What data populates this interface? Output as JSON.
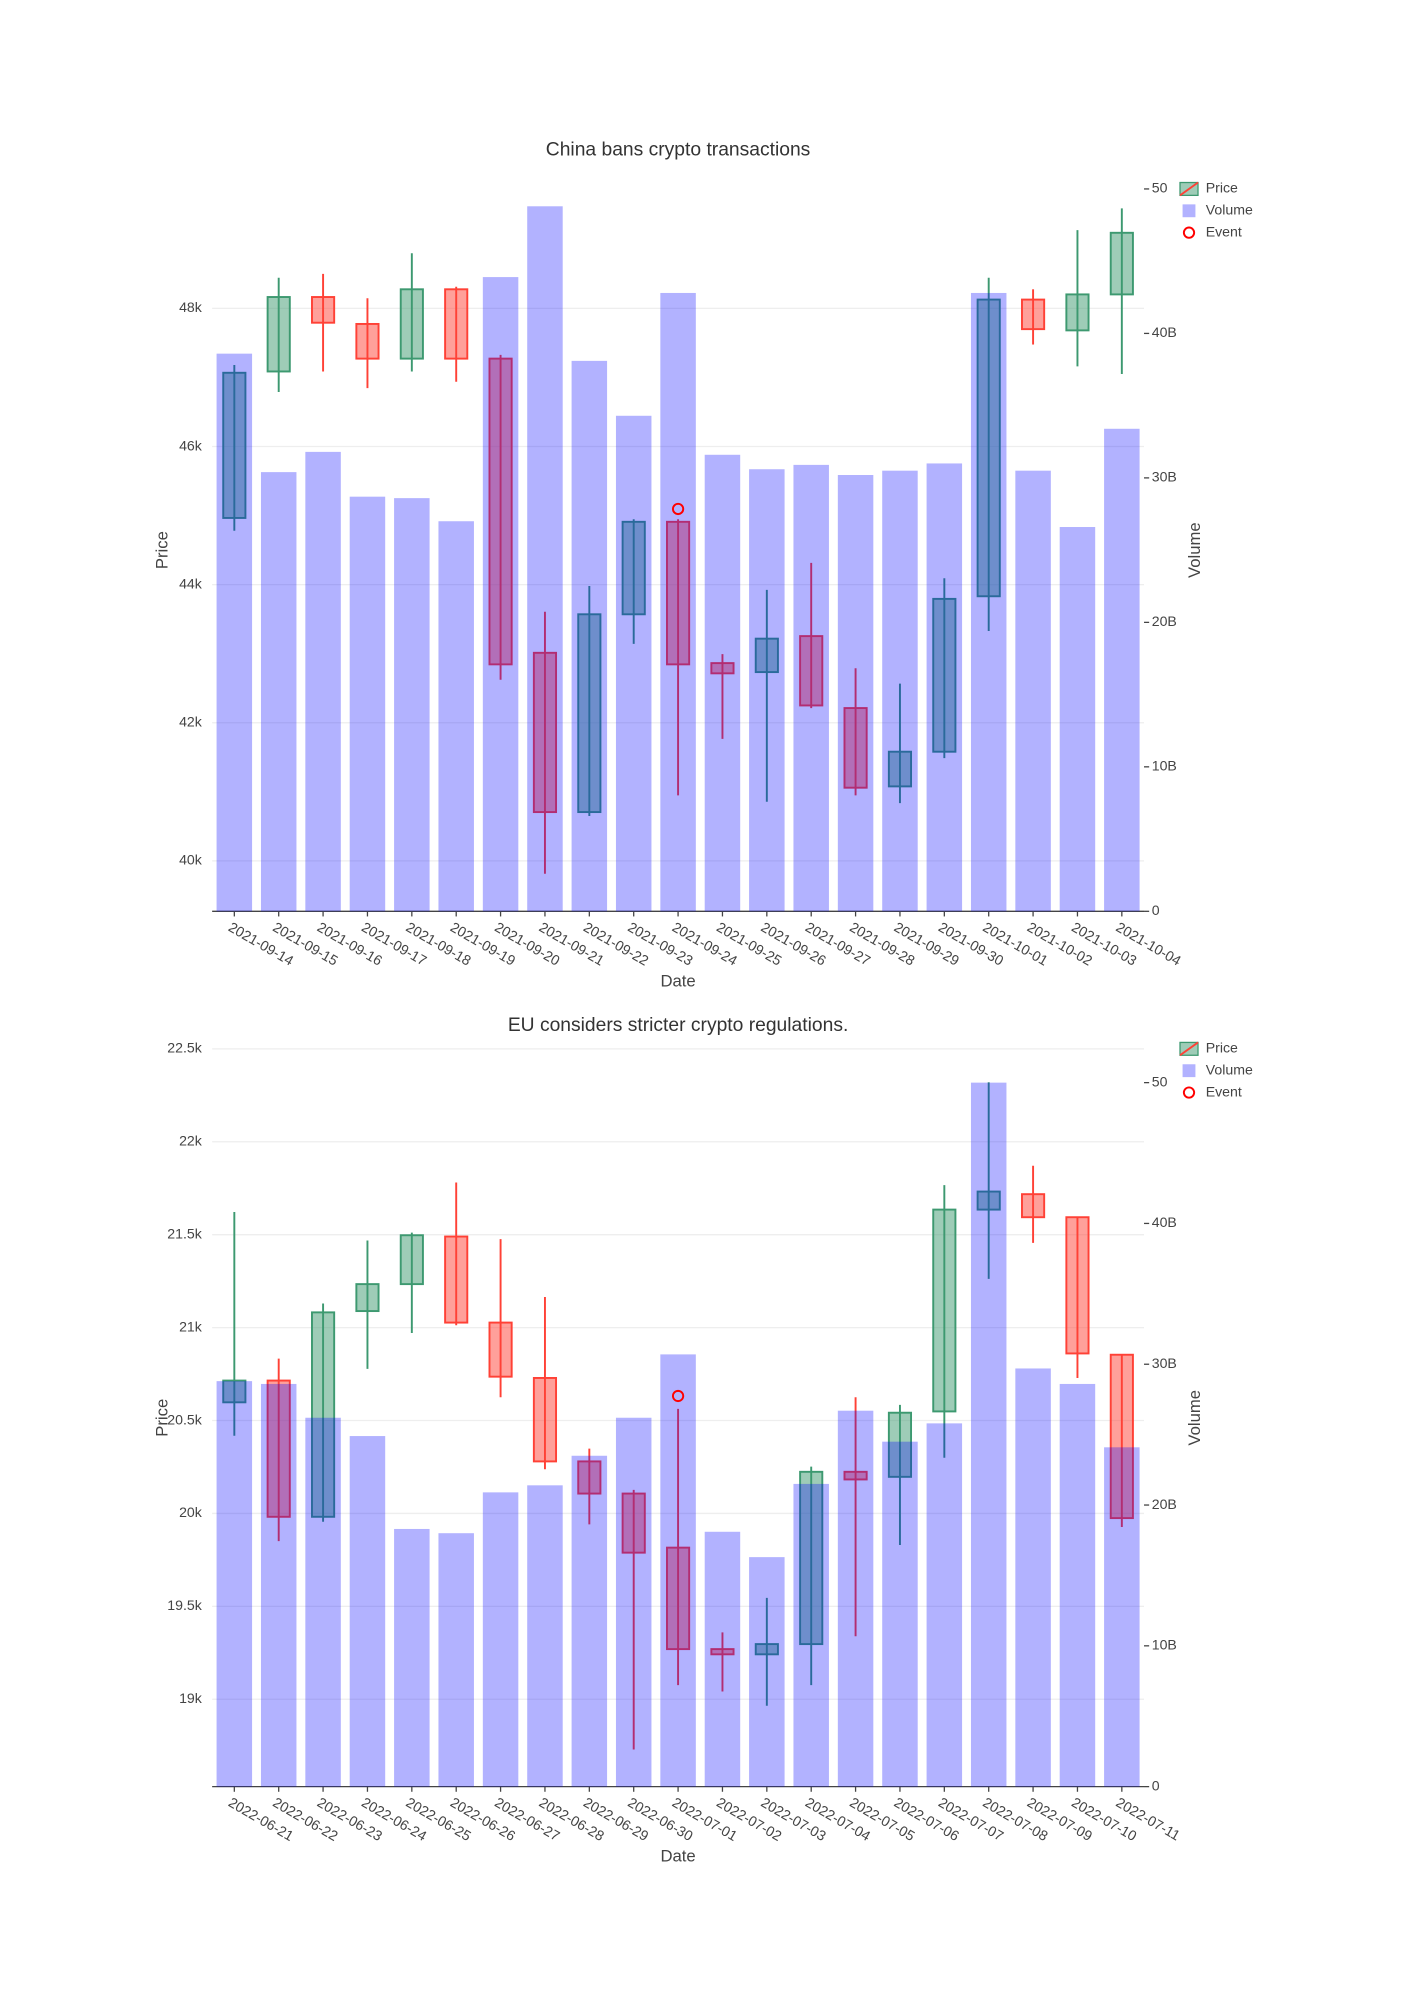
{
  "chart_data": [
    {
      "type": "candlestick",
      "title": "China bans crypto transactions",
      "xlabel": "Date",
      "ylabel": "Price",
      "y2label": "Volume",
      "categories": [
        "2021-09-14",
        "2021-09-15",
        "2021-09-16",
        "2021-09-17",
        "2021-09-18",
        "2021-09-19",
        "2021-09-20",
        "2021-09-21",
        "2021-09-22",
        "2021-09-23",
        "2021-09-24",
        "2021-09-25",
        "2021-09-26",
        "2021-09-27",
        "2021-09-28",
        "2021-09-29",
        "2021-09-30",
        "2021-10-01",
        "2021-10-02",
        "2021-10-03",
        "2021-10-04"
      ],
      "ylim": [
        39270,
        49730
      ],
      "yticks": [
        {
          "value": 40000,
          "label": "40k"
        },
        {
          "value": 42000,
          "label": "42k"
        },
        {
          "value": 44000,
          "label": "44k"
        },
        {
          "value": 46000,
          "label": "46k"
        },
        {
          "value": 48000,
          "label": "48k"
        }
      ],
      "y2lim": [
        0,
        50000000000
      ],
      "y2ticks": [
        0,
        {
          "value": 10000000000,
          "label": "10B"
        },
        {
          "value": 20000000000,
          "label": "20B"
        },
        {
          "value": 30000000000,
          "label": "30B"
        },
        {
          "value": 40000000000,
          "label": "40B"
        },
        {
          "value": 50000000000,
          "label": "50"
        }
      ],
      "grid": true,
      "series": [
        {
          "name": "Price",
          "type": "candlestick",
          "increasing_color": "#3d9970",
          "decreasing_color": "#ff4136",
          "open": [
            44966,
            47087,
            48165,
            47775,
            47273,
            48277,
            47273,
            43013,
            40707,
            43571,
            44910,
            42864,
            42734,
            43255,
            42213,
            41079,
            41581,
            43832,
            48128,
            47682,
            48203
          ],
          "high": [
            47180,
            48444,
            48500,
            48147,
            48798,
            48314,
            47328,
            43608,
            43980,
            44948,
            44948,
            42995,
            43925,
            44315,
            42790,
            42567,
            44092,
            48444,
            48277,
            49133,
            49449
          ],
          "low": [
            44780,
            46789,
            47087,
            46845,
            47087,
            46938,
            42623,
            39814,
            40651,
            43143,
            40949,
            41767,
            40856,
            42213,
            40949,
            40837,
            41488,
            43329,
            47477,
            47161,
            47050
          ],
          "close": [
            47068,
            48165,
            47793,
            47273,
            48277,
            47273,
            42846,
            40707,
            43571,
            44910,
            42846,
            42716,
            43218,
            42251,
            41060,
            41581,
            43794,
            48128,
            47700,
            48203,
            49095
          ]
        },
        {
          "name": "Volume",
          "type": "bar",
          "axis": "y2",
          "color": "#0000ff",
          "opacity": 0.3,
          "values": [
            38600000000,
            30400000000,
            31800000000,
            28700000000,
            28600000000,
            27000000000,
            43900000000,
            48800000000,
            38100000000,
            34300000000,
            42800000000,
            31600000000,
            30600000000,
            30900000000,
            30200000000,
            30500000000,
            31000000000,
            42800000000,
            30500000000,
            26600000000,
            33400000000
          ]
        },
        {
          "name": "Event",
          "type": "scatter",
          "color": "#ff0000",
          "x": [
            "2021-09-24"
          ],
          "values": [
            45096
          ]
        }
      ]
    },
    {
      "type": "candlestick",
      "title": "EU considers stricter crypto regulations.",
      "xlabel": "Date",
      "ylabel": "Price",
      "y2label": "Volume",
      "categories": [
        "2022-06-21",
        "2022-06-22",
        "2022-06-23",
        "2022-06-24",
        "2022-06-25",
        "2022-06-26",
        "2022-06-27",
        "2022-06-28",
        "2022-06-29",
        "2022-06-30",
        "2022-07-01",
        "2022-07-02",
        "2022-07-03",
        "2022-07-04",
        "2022-07-05",
        "2022-07-06",
        "2022-07-07",
        "2022-07-08",
        "2022-07-09",
        "2022-07-10",
        "2022-07-11"
      ],
      "ylim": [
        18530,
        22500
      ],
      "yticks": [
        {
          "value": 19000,
          "label": "19k"
        },
        {
          "value": 19500,
          "label": "19.5k"
        },
        {
          "value": 20000,
          "label": "20k"
        },
        {
          "value": 20500,
          "label": "20.5k"
        },
        {
          "value": 21000,
          "label": "21k"
        },
        {
          "value": 21500,
          "label": "21.5k"
        },
        {
          "value": 22000,
          "label": "22k"
        },
        {
          "value": 22500,
          "label": "22.5k"
        }
      ],
      "y2lim": [
        0,
        52400000000
      ],
      "y2ticks": [
        0,
        {
          "value": 10000000000,
          "label": "10B"
        },
        {
          "value": 20000000000,
          "label": "20B"
        },
        {
          "value": 30000000000,
          "label": "30B"
        },
        {
          "value": 40000000000,
          "label": "40B"
        },
        {
          "value": 50000000000,
          "label": "50"
        }
      ],
      "grid": true,
      "series": [
        {
          "name": "Price",
          "type": "candlestick",
          "increasing_color": "#3d9970",
          "decreasing_color": "#ff4136",
          "open": [
            20598,
            20715,
            19982,
            21089,
            21234,
            21490,
            21027,
            20729,
            20280,
            20107,
            19816,
            19270,
            19242,
            19297,
            20224,
            20197,
            20549,
            21635,
            21718,
            21594,
            20854
          ],
          "high": [
            21622,
            20833,
            21130,
            21469,
            21511,
            21781,
            21476,
            21165,
            20349,
            20127,
            20563,
            19360,
            19546,
            20252,
            20625,
            20584,
            21767,
            22320,
            21871,
            21594,
            20854
          ],
          "low": [
            20418,
            19851,
            19955,
            20778,
            20971,
            21013,
            20625,
            20238,
            19941,
            18730,
            19076,
            19042,
            18965,
            19076,
            19339,
            19830,
            20300,
            21262,
            21456,
            20729,
            19927
          ],
          "close": [
            20715,
            19982,
            21082,
            21234,
            21497,
            21027,
            20736,
            20280,
            20107,
            19789,
            19270,
            19242,
            19297,
            20224,
            20183,
            20542,
            21635,
            21732,
            21594,
            20861,
            19975
          ]
        },
        {
          "name": "Volume",
          "type": "bar",
          "axis": "y2",
          "color": "#0000ff",
          "opacity": 0.3,
          "values": [
            28800000000,
            28600000000,
            26200000000,
            24900000000,
            18300000000,
            18000000000,
            20900000000,
            21400000000,
            23500000000,
            26200000000,
            30700000000,
            18100000000,
            16300000000,
            21500000000,
            26700000000,
            24500000000,
            25800000000,
            50000000000,
            29700000000,
            28600000000,
            24100000000
          ]
        },
        {
          "name": "Event",
          "type": "scatter",
          "color": "#ff0000",
          "x": [
            "2022-07-01"
          ],
          "values": [
            20632
          ]
        }
      ]
    }
  ]
}
